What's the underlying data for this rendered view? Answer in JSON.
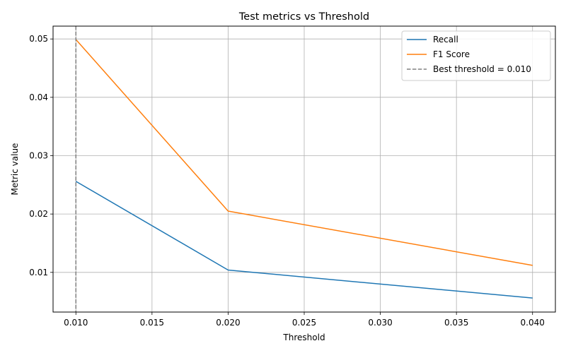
{
  "chart_data": {
    "type": "line",
    "title": "Test metrics vs Threshold",
    "xlabel": "Threshold",
    "ylabel": "Metric value",
    "xlim": [
      0.0085,
      0.0415
    ],
    "ylim": [
      0.0032,
      0.0522
    ],
    "xticks": [
      0.01,
      0.015,
      0.02,
      0.025,
      0.03,
      0.035,
      0.04
    ],
    "xtick_labels": [
      "0.010",
      "0.015",
      "0.020",
      "0.025",
      "0.030",
      "0.035",
      "0.040"
    ],
    "yticks": [
      0.01,
      0.02,
      0.03,
      0.04,
      0.05
    ],
    "ytick_labels": [
      "0.01",
      "0.02",
      "0.03",
      "0.04",
      "0.05"
    ],
    "grid": true,
    "legend_position": "top-right",
    "x": [
      0.01,
      0.02,
      0.04
    ],
    "series": [
      {
        "name": "Recall",
        "values": [
          0.0256,
          0.0104,
          0.0056
        ],
        "color": "#1f77b4",
        "style": "solid"
      },
      {
        "name": "F1 Score",
        "values": [
          0.0499,
          0.0205,
          0.0112
        ],
        "color": "#ff7f0e",
        "style": "solid"
      }
    ],
    "vline": {
      "x": 0.01,
      "label": "Best threshold = 0.010",
      "color": "#808080",
      "style": "dashed"
    }
  }
}
